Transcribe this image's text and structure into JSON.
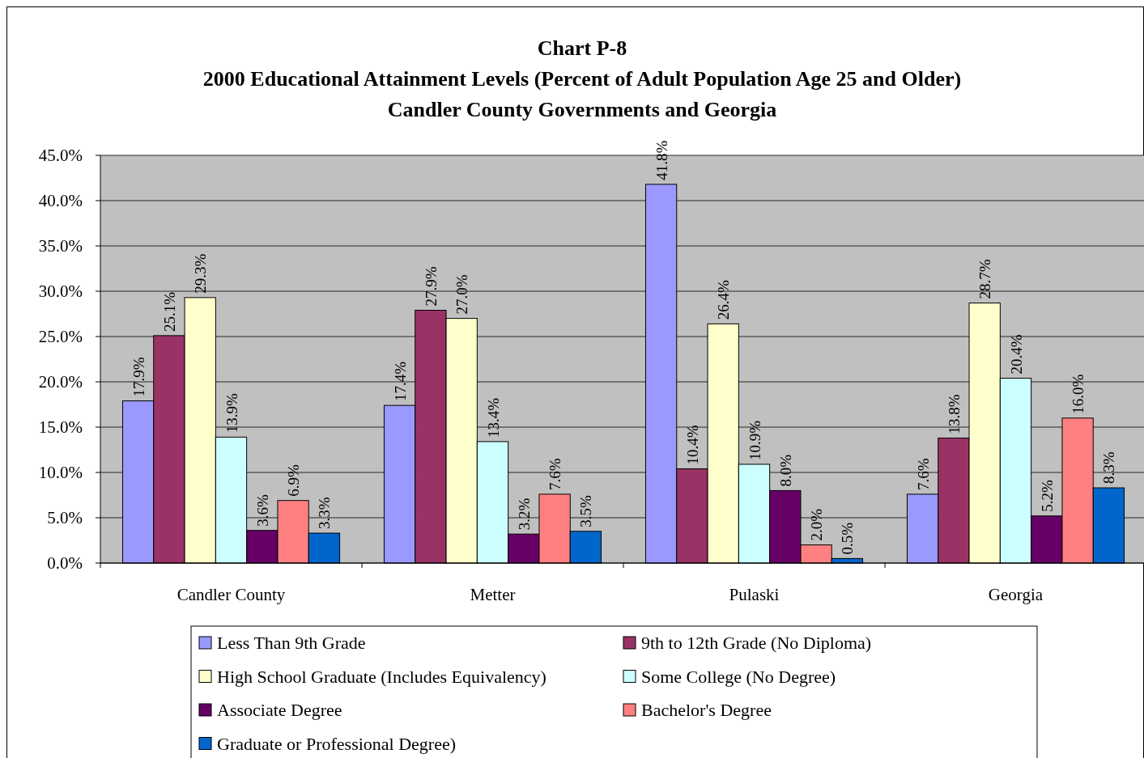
{
  "chart_data": {
    "type": "bar",
    "title": "Chart P-8",
    "subtitle": "2000 Educational Attainment Levels (Percent of Adult Population Age 25 and Older)\nCandler County Governments and Georgia",
    "categories": [
      "Candler County",
      "Metter",
      "Pulaski",
      "Georgia"
    ],
    "series": [
      {
        "name": "Less Than 9th Grade",
        "color": "#9999ff",
        "values": [
          17.9,
          17.4,
          41.8,
          7.6
        ],
        "value_labels": [
          "17.9%",
          "17.4%",
          "41.8%",
          "7.6%"
        ]
      },
      {
        "name": "9th to 12th Grade (No Diploma)",
        "color": "#993366",
        "values": [
          25.1,
          27.9,
          10.4,
          13.8
        ],
        "value_labels": [
          "25.1%",
          "27.9%",
          "10.4%",
          "13.8%"
        ]
      },
      {
        "name": "High School Graduate (Includes Equivalency)",
        "color": "#ffffcc",
        "values": [
          29.3,
          27.0,
          26.4,
          28.7
        ],
        "value_labels": [
          "29.3%",
          "27.0%",
          "26.4%",
          "28.7%"
        ]
      },
      {
        "name": "Some College (No Degree)",
        "color": "#ccffff",
        "values": [
          13.9,
          13.4,
          10.9,
          20.4
        ],
        "value_labels": [
          "13.9%",
          "13.4%",
          "10.9%",
          "20.4%"
        ]
      },
      {
        "name": "Associate Degree",
        "color": "#660066",
        "values": [
          3.6,
          3.2,
          8.0,
          5.2
        ],
        "value_labels": [
          "3.6%",
          "3.2%",
          "8.0%",
          "5.2%"
        ]
      },
      {
        "name": "Bachelor's Degree",
        "color": "#ff8080",
        "values": [
          6.9,
          7.6,
          2.0,
          16.0
        ],
        "value_labels": [
          "6.9%",
          "7.6%",
          "2.0%",
          "16.0%"
        ]
      },
      {
        "name": "Graduate or Professional Degree)",
        "color": "#0066cc",
        "values": [
          3.3,
          3.5,
          0.5,
          8.3
        ],
        "value_labels": [
          "3.3%",
          "3.5%",
          "0.5%",
          "8.3%"
        ]
      }
    ],
    "ylim": [
      0,
      45
    ],
    "yticks": [
      {
        "value": 0,
        "label": "0.0%"
      },
      {
        "value": 5,
        "label": "5.0%"
      },
      {
        "value": 10,
        "label": "10.0%"
      },
      {
        "value": 15,
        "label": "15.0%"
      },
      {
        "value": 20,
        "label": "20.0%"
      },
      {
        "value": 25,
        "label": "25.0%"
      },
      {
        "value": 30,
        "label": "30.0%"
      },
      {
        "value": 35,
        "label": "35.0%"
      },
      {
        "value": 40,
        "label": "40.0%"
      },
      {
        "value": 45,
        "label": "45.0%"
      }
    ],
    "grid": "y",
    "legend": "bottom"
  }
}
